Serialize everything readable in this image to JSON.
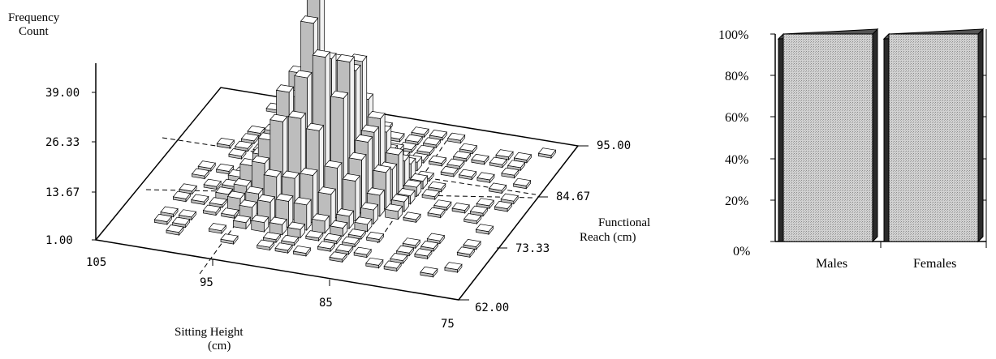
{
  "chart_data": [
    {
      "type": "3d-histogram",
      "zlabel": [
        "Frequency",
        "Count"
      ],
      "xlabel": [
        "Sitting Height",
        "(cm)"
      ],
      "ylabel": [
        "Functional",
        "Reach (cm)"
      ],
      "z_ticks": [
        "39.00",
        "26.33",
        "13.67",
        "1.00"
      ],
      "x_ticks": [
        "105",
        "95",
        "85",
        "75"
      ],
      "y_ticks": [
        "95.00",
        "84.67",
        "73.33",
        "62.00"
      ],
      "xlim": [
        105,
        75
      ],
      "ylim": [
        62,
        95
      ],
      "zlim": [
        1,
        39
      ]
    },
    {
      "type": "bar",
      "stacked_percent": true,
      "categories": [
        "Males",
        "Females"
      ],
      "values": [
        100,
        100
      ],
      "y_ticks": [
        "100%",
        "80%",
        "60%",
        "40%",
        "20%",
        "0%"
      ],
      "ylim": [
        0,
        100
      ]
    }
  ]
}
